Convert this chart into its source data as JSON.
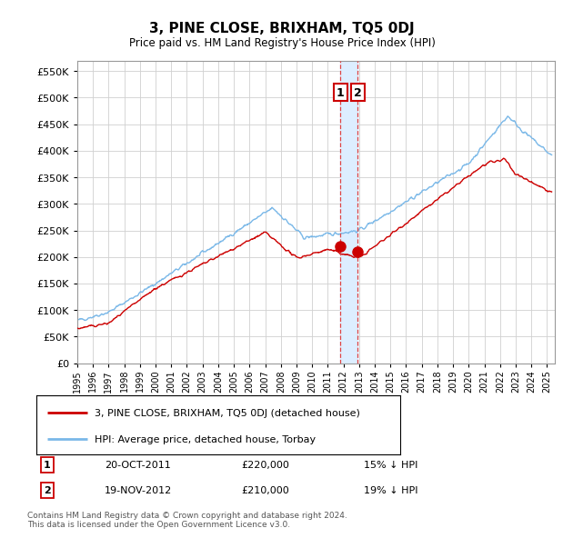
{
  "title": "3, PINE CLOSE, BRIXHAM, TQ5 0DJ",
  "subtitle": "Price paid vs. HM Land Registry's House Price Index (HPI)",
  "ytick_values": [
    0,
    50000,
    100000,
    150000,
    200000,
    250000,
    300000,
    350000,
    400000,
    450000,
    500000,
    550000
  ],
  "ylim": [
    0,
    570000
  ],
  "xlim_start": 1995.0,
  "xlim_end": 2025.5,
  "hpi_color": "#7ab8e8",
  "price_color": "#cc0000",
  "transaction1": {
    "date_num": 2011.8,
    "price": 220000,
    "label": "1",
    "date_str": "20-OCT-2011",
    "pct": "15%",
    "dir": "↓"
  },
  "transaction2": {
    "date_num": 2012.9,
    "price": 210000,
    "label": "2",
    "date_str": "19-NOV-2012",
    "pct": "19%",
    "dir": "↓"
  },
  "legend_line1": "3, PINE CLOSE, BRIXHAM, TQ5 0DJ (detached house)",
  "legend_line2": "HPI: Average price, detached house, Torbay",
  "footnote": "Contains HM Land Registry data © Crown copyright and database right 2024.\nThis data is licensed under the Open Government Licence v3.0.",
  "xtick_years": [
    1995,
    1996,
    1997,
    1998,
    1999,
    2000,
    2001,
    2002,
    2003,
    2004,
    2005,
    2006,
    2007,
    2008,
    2009,
    2010,
    2011,
    2012,
    2013,
    2014,
    2015,
    2016,
    2017,
    2018,
    2019,
    2020,
    2021,
    2022,
    2023,
    2024,
    2025
  ],
  "background_color": "#ffffff",
  "grid_color": "#d0d0d0",
  "span_color": "#ddeeff",
  "dashed_color": "#dd4444"
}
